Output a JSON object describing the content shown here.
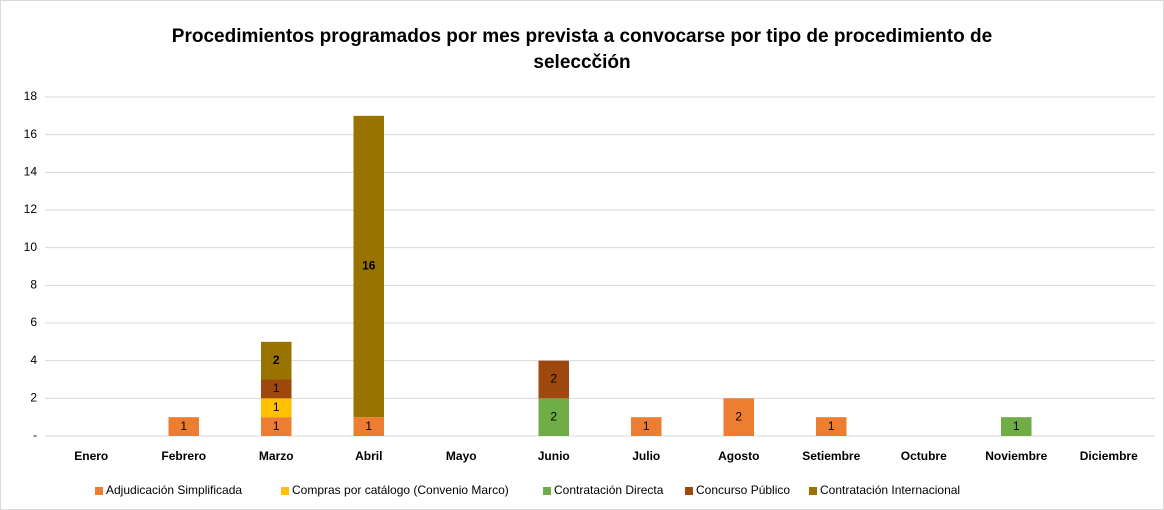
{
  "chart_data": {
    "type": "stacked_bar",
    "title": "Procedimientos programados por mes prevista a convocarse por tipo de procedimiento de seleccčión",
    "categories": [
      "Enero",
      "Febrero",
      "Marzo",
      "Abril",
      "Mayo",
      "Junio",
      "Julio",
      "Agosto",
      "Setiembre",
      "Octubre",
      "Noviembre",
      "Diciembre"
    ],
    "series": [
      {
        "name": "Adjudicación Simplificada",
        "color": "#ED7D31",
        "values": [
          0,
          1,
          1,
          1,
          0,
          0,
          1,
          2,
          1,
          0,
          0,
          0
        ]
      },
      {
        "name": "Compras por catálogo (Convenio Marco)",
        "color": "#FFC000",
        "values": [
          0,
          0,
          1,
          0,
          0,
          0,
          0,
          0,
          0,
          0,
          0,
          0
        ]
      },
      {
        "name": "Contratación Directa",
        "color": "#70AD47",
        "values": [
          0,
          0,
          0,
          0,
          0,
          2,
          0,
          0,
          0,
          0,
          1,
          0
        ]
      },
      {
        "name": "Concurso Público",
        "color": "#9E480E",
        "values": [
          0,
          0,
          1,
          0,
          0,
          2,
          0,
          0,
          0,
          0,
          0,
          0
        ]
      },
      {
        "name": "Contratación Internacional",
        "color": "#997300",
        "values": [
          0,
          0,
          2,
          16,
          0,
          0,
          0,
          0,
          0,
          0,
          0,
          0
        ]
      }
    ],
    "ylim": [
      0,
      18
    ],
    "yticks": [
      {
        "value": 0,
        "label": "-"
      },
      2,
      4,
      6,
      8,
      10,
      12,
      14,
      16,
      18
    ],
    "grid": true,
    "legend": "bottom"
  }
}
